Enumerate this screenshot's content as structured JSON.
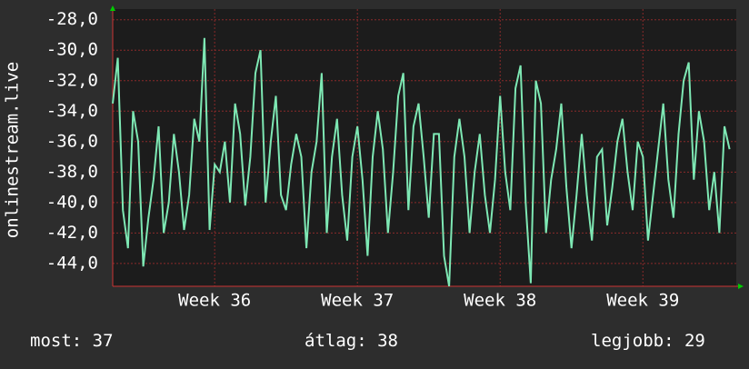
{
  "chart_data": {
    "type": "line",
    "ylabel": "onlinestream.live",
    "xlim": [
      0,
      30.58
    ],
    "ylim": [
      -45.5,
      -27.3
    ],
    "xticks": [
      {
        "value": 5,
        "label": "Week 36"
      },
      {
        "value": 12,
        "label": "Week 37"
      },
      {
        "value": 19,
        "label": "Week 38"
      },
      {
        "value": 26,
        "label": "Week 39"
      }
    ],
    "yticks": [
      {
        "value": -28,
        "label": "-28,0"
      },
      {
        "value": -30,
        "label": "-30,0"
      },
      {
        "value": -32,
        "label": "-32,0"
      },
      {
        "value": -34,
        "label": "-34,0"
      },
      {
        "value": -36,
        "label": "-36,0"
      },
      {
        "value": -38,
        "label": "-38,0"
      },
      {
        "value": -40,
        "label": "-40,0"
      },
      {
        "value": -42,
        "label": "-42,0"
      },
      {
        "value": -44,
        "label": "-44,0"
      }
    ],
    "grid": true,
    "x": [
      0,
      0.25,
      0.5,
      0.75,
      1,
      1.25,
      1.5,
      1.75,
      2,
      2.25,
      2.5,
      2.75,
      3,
      3.25,
      3.5,
      3.75,
      4,
      4.25,
      4.5,
      4.75,
      5,
      5.25,
      5.5,
      5.75,
      6,
      6.25,
      6.5,
      6.75,
      7,
      7.25,
      7.5,
      7.75,
      8,
      8.25,
      8.5,
      8.75,
      9,
      9.25,
      9.5,
      9.75,
      10,
      10.25,
      10.5,
      10.75,
      11,
      11.25,
      11.5,
      11.75,
      12,
      12.25,
      12.5,
      12.75,
      13,
      13.25,
      13.5,
      13.75,
      14,
      14.25,
      14.5,
      14.75,
      15,
      15.25,
      15.5,
      15.75,
      16,
      16.25,
      16.5,
      16.75,
      17,
      17.25,
      17.5,
      17.75,
      18,
      18.25,
      18.5,
      18.75,
      19,
      19.25,
      19.5,
      19.75,
      20,
      20.25,
      20.5,
      20.75,
      21,
      21.25,
      21.5,
      21.75,
      22,
      22.25,
      22.5,
      22.75,
      23,
      23.25,
      23.5,
      23.75,
      24,
      24.25,
      24.5,
      24.75,
      25,
      25.25,
      25.5,
      25.75,
      26,
      26.25,
      26.5,
      26.75,
      27,
      27.25,
      27.5,
      27.75,
      28,
      28.25,
      28.5,
      28.75,
      29,
      29.25,
      29.5,
      29.75,
      30,
      30.25
    ],
    "series": [
      {
        "color": "#7ee8b4",
        "values": [
          -33.5,
          -30.5,
          -40.5,
          -43.0,
          -34.0,
          -36.0,
          -44.2,
          -41.0,
          -38.5,
          -35.0,
          -42.0,
          -40.0,
          -35.5,
          -38.0,
          -41.8,
          -39.5,
          -34.5,
          -36.0,
          -29.2,
          -41.8,
          -37.5,
          -38.0,
          -36.0,
          -40.0,
          -33.5,
          -35.5,
          -40.2,
          -37.0,
          -31.5,
          -30.0,
          -40.0,
          -36.0,
          -33.0,
          -39.5,
          -40.5,
          -37.5,
          -35.5,
          -37.0,
          -43.0,
          -38.0,
          -36.0,
          -31.5,
          -42.0,
          -37.0,
          -34.5,
          -39.5,
          -42.5,
          -37.0,
          -35.0,
          -38.5,
          -43.5,
          -37.0,
          -34.0,
          -36.5,
          -42.0,
          -38.0,
          -33.0,
          -31.5,
          -40.5,
          -35.0,
          -33.5,
          -37.0,
          -41.0,
          -35.5,
          -35.5,
          -43.5,
          -45.5,
          -37.0,
          -34.5,
          -37.0,
          -42.0,
          -38.0,
          -35.5,
          -39.5,
          -42.0,
          -38.5,
          -33.0,
          -38.0,
          -40.5,
          -32.5,
          -31.0,
          -40.0,
          -45.3,
          -32.0,
          -33.5,
          -42.0,
          -38.5,
          -36.5,
          -33.5,
          -39.0,
          -43.0,
          -39.5,
          -35.5,
          -39.5,
          -42.5,
          -37.0,
          -36.5,
          -41.5,
          -39.0,
          -36.0,
          -34.5,
          -38.0,
          -40.5,
          -36.0,
          -37.0,
          -42.5,
          -39.5,
          -36.5,
          -33.5,
          -38.5,
          -41.0,
          -35.5,
          -32.0,
          -30.8,
          -38.5,
          -34.0,
          -36.0,
          -40.5,
          -38.0,
          -42.0,
          -35.0,
          -36.5
        ]
      }
    ],
    "stats": [
      {
        "label": "most:",
        "value": 37
      },
      {
        "label": "átlag:",
        "value": 38
      },
      {
        "label": "legjobb:",
        "value": 29
      }
    ]
  }
}
